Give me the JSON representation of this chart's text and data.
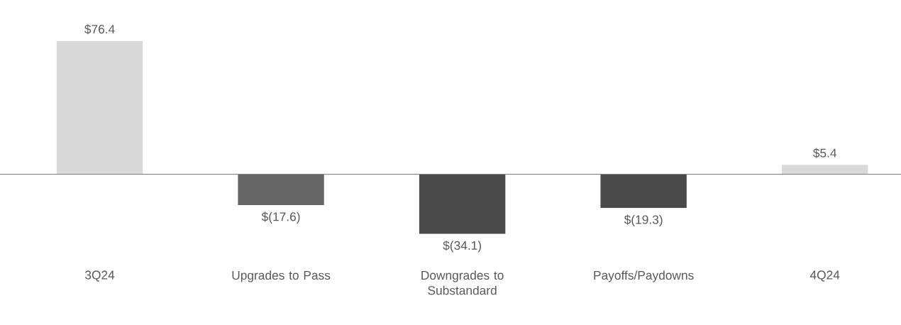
{
  "chart_data": {
    "type": "bar",
    "categories": [
      "3Q24",
      "Upgrades to Pass",
      "Downgrades to Substandard",
      "Payoffs/Paydowns",
      "4Q24"
    ],
    "values": [
      76.4,
      -17.6,
      -34.1,
      -19.3,
      5.4
    ],
    "colors": [
      "#d9d9d9",
      "#666666",
      "#4a4a4a",
      "#4a4a4a",
      "#d9d9d9"
    ],
    "value_labels": [
      "$76.4",
      "$(17.6)",
      "$(34.1)",
      "$(19.3)",
      "$5.4"
    ]
  }
}
